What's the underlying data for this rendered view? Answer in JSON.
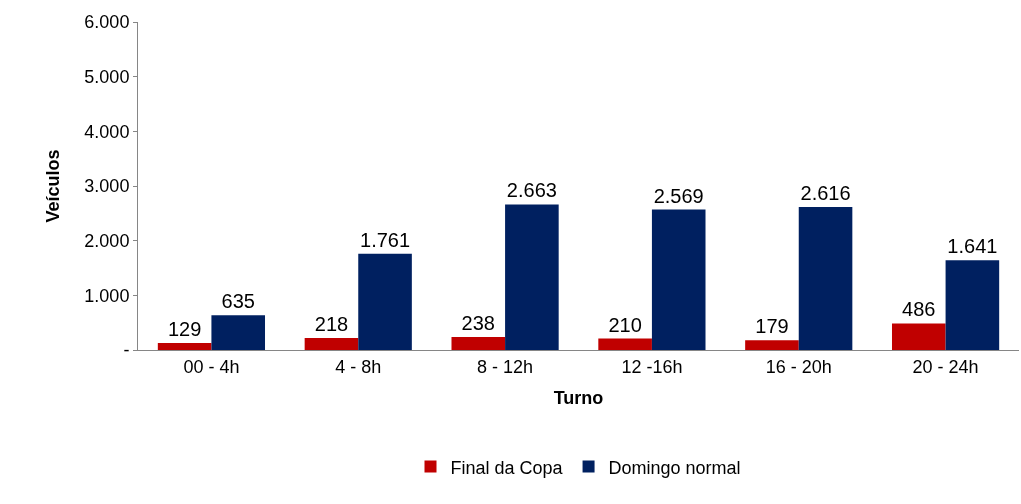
{
  "chart_data": {
    "type": "bar",
    "xlabel": "Turno",
    "ylabel": "Veículos",
    "categories": [
      "00 - 4h",
      "4 - 8h",
      "8 - 12h",
      "12 -16h",
      "16 - 20h",
      "20 - 24h"
    ],
    "series": [
      {
        "name": "Final da Copa",
        "color": "#c00000",
        "values": [
          129,
          218,
          238,
          210,
          179,
          486
        ],
        "value_labels": [
          "129",
          "218",
          "238",
          "210",
          "179",
          "486"
        ]
      },
      {
        "name": "Domingo normal",
        "color": "#002060",
        "values": [
          635,
          1761,
          2663,
          2569,
          2616,
          1641
        ],
        "value_labels": [
          "635",
          "1.761",
          "2.663",
          "2.569",
          "2.616",
          "1.641"
        ]
      }
    ],
    "ylim": [
      0,
      6000
    ],
    "yticks": [
      {
        "value": 0,
        "label": "-"
      },
      {
        "value": 1000,
        "label": "1.000"
      },
      {
        "value": 2000,
        "label": "2.000"
      },
      {
        "value": 3000,
        "label": "3.000"
      },
      {
        "value": 4000,
        "label": "4.000"
      },
      {
        "value": 5000,
        "label": "5.000"
      },
      {
        "value": 6000,
        "label": "6.000"
      }
    ],
    "grid": false,
    "legend": "bottom"
  }
}
